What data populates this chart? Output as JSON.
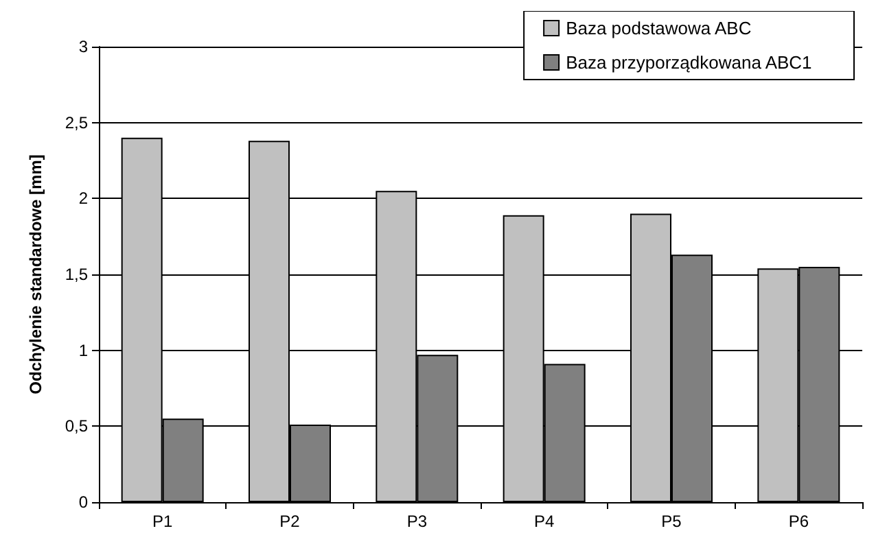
{
  "chart_data": {
    "type": "bar",
    "ylabel": "Odchylenie standardowe [mm]",
    "categories": [
      "P1",
      "P2",
      "P3",
      "P4",
      "P5",
      "P6"
    ],
    "series": [
      {
        "name": "Baza podstawowa ABC",
        "color": "#c0c0c0",
        "values": [
          2.4,
          2.38,
          2.05,
          1.89,
          1.9,
          1.54
        ]
      },
      {
        "name": "Baza przyporządkowana ABC1",
        "color": "#808080",
        "values": [
          0.55,
          0.51,
          0.97,
          0.91,
          1.63,
          1.55
        ]
      }
    ],
    "ylim": [
      0,
      3
    ],
    "yticks": [
      0,
      {
        "value": 0.5,
        "label": "0,5"
      },
      1,
      {
        "value": 1.5,
        "label": "1,5"
      },
      2,
      {
        "value": 2.5,
        "label": "2,5"
      },
      3
    ],
    "grid": "y",
    "legend": "top right"
  }
}
